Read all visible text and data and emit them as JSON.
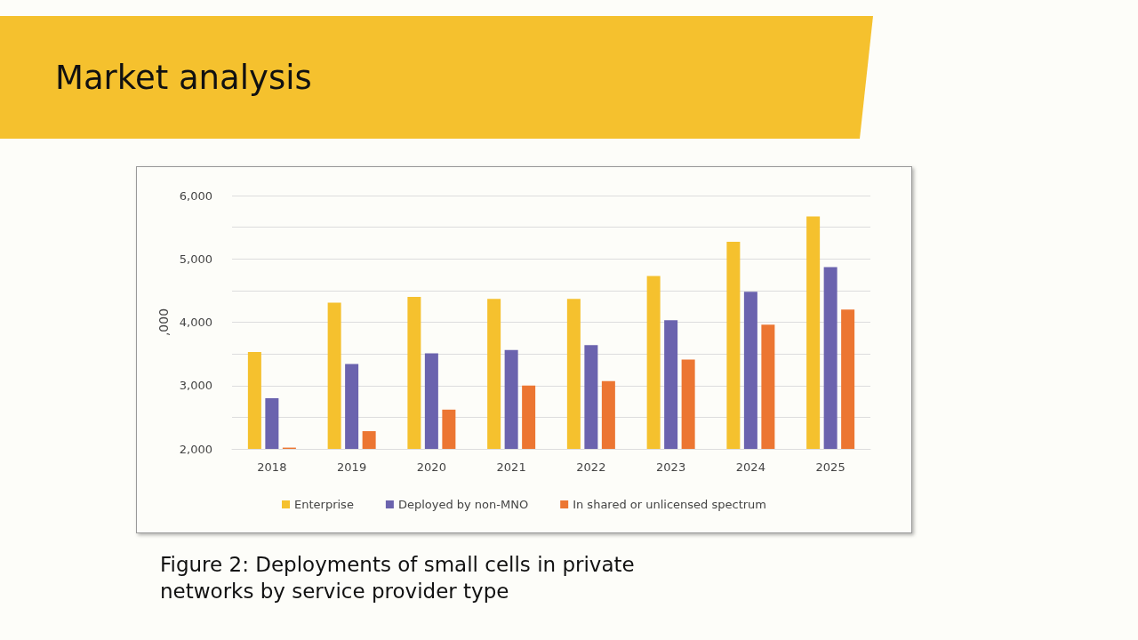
{
  "chart_data": {
    "type": "bar",
    "title": "Market analysis",
    "ylabel": ",000",
    "categories": [
      "2018",
      "2019",
      "2020",
      "2021",
      "2022",
      "2023",
      "2024",
      "2025"
    ],
    "series": [
      {
        "name": "Enterprise",
        "color": "#f5c12e",
        "values": [
          3530,
          4310,
          4400,
          4370,
          4370,
          4730,
          5270,
          5670
        ]
      },
      {
        "name": "Deployed by non-MNO",
        "color": "#6b63ae",
        "values": [
          2800,
          3340,
          3510,
          3560,
          3640,
          4030,
          4480,
          4870
        ]
      },
      {
        "name": "In shared or unlicensed spectrum",
        "color": "#ec7632",
        "values": [
          2020,
          2280,
          2620,
          3000,
          3070,
          3410,
          3960,
          4200
        ]
      }
    ],
    "ylim": [
      2000,
      6000
    ],
    "yticks": [
      {
        "value": 2000,
        "label": "2,000"
      },
      {
        "value": 2500,
        "label": null
      },
      {
        "value": 3000,
        "label": "3,000"
      },
      {
        "value": 3500,
        "label": null
      },
      {
        "value": 4000,
        "label": "4,000"
      },
      {
        "value": 4500,
        "label": null
      },
      {
        "value": 5000,
        "label": "5,000"
      },
      {
        "value": 5500,
        "label": null
      },
      {
        "value": 6000,
        "label": "6,000"
      }
    ],
    "grid": "y",
    "legend": "bottom",
    "annotations": [
      "Figure 2: Deployments of small cells in private networks by service provider type"
    ]
  }
}
